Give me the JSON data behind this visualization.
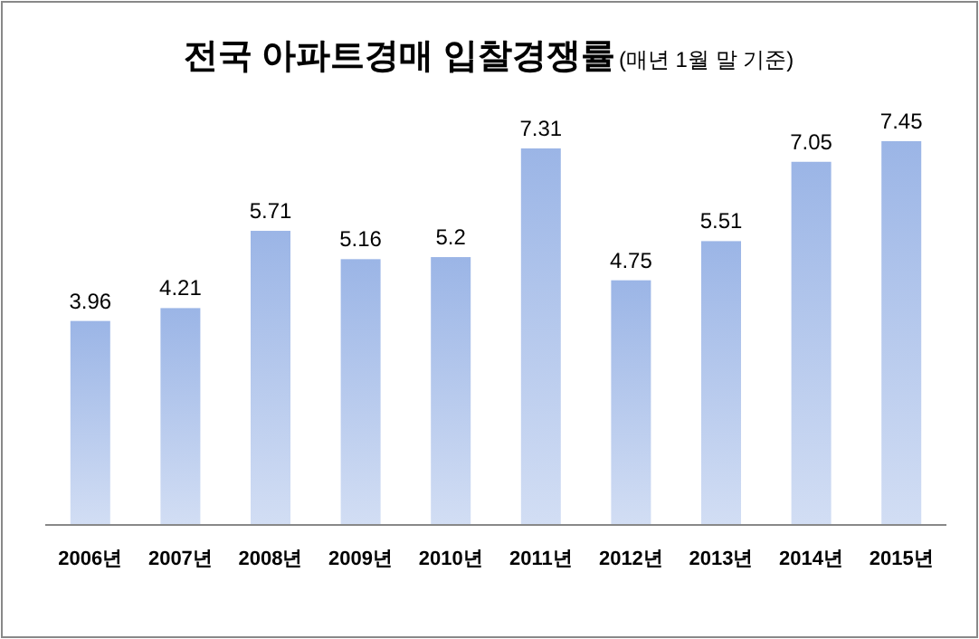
{
  "chart_data": {
    "type": "bar",
    "title": "전국 아파트경매 입찰경쟁률",
    "subtitle": "(매년 1월 말 기준)",
    "categories": [
      "2006년",
      "2007년",
      "2008년",
      "2009년",
      "2010년",
      "2011년",
      "2012년",
      "2013년",
      "2014년",
      "2015년"
    ],
    "values": [
      3.96,
      4.21,
      5.71,
      5.16,
      5.2,
      7.31,
      4.75,
      5.51,
      7.05,
      7.45
    ],
    "color": "#9bb5e6",
    "data_labels": true
  }
}
